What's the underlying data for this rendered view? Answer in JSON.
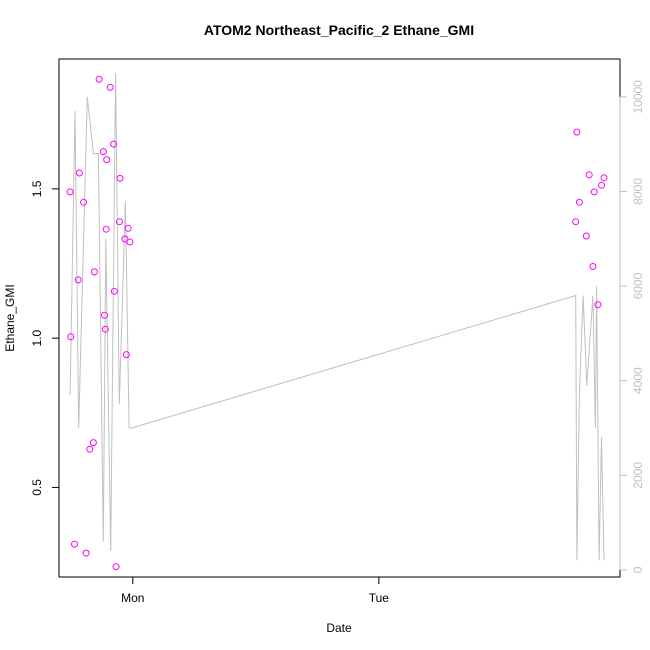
{
  "chart_data": {
    "type": "scatter",
    "title": "ATOM2 Northeast_Pacific_2 Ethane_GMI",
    "xlabel": "Date",
    "ylabel": "Ethane_GMI",
    "x_ticks": [
      {
        "label": "Mon",
        "value": 0
      },
      {
        "label": "Tue",
        "value": 1
      }
    ],
    "xlim": [
      -0.3,
      1.98
    ],
    "ylim": [
      0.2,
      1.935
    ],
    "y_ticks": [
      0.5,
      1.0,
      1.5
    ],
    "y_tick_labels": [
      "0.5",
      "1.0",
      "1.5"
    ],
    "y2lim": [
      -150,
      10800
    ],
    "y2_ticks": [
      0,
      2000,
      4000,
      6000,
      8000,
      10000
    ],
    "y2_tick_labels": [
      "0",
      "2000",
      "4000",
      "6000",
      "8000",
      "10000"
    ],
    "colors": {
      "points": "#ff00ff",
      "line": "#c0c0c0",
      "axis": "#000000",
      "right_axis": "#c0c0c0"
    },
    "grid": false,
    "series": [
      {
        "type": "scatter",
        "axis": "left",
        "points": [
          [
            -0.255,
            1.49
          ],
          [
            -0.252,
            1.005
          ],
          [
            -0.237,
            0.31
          ],
          [
            -0.222,
            1.195
          ],
          [
            -0.217,
            1.553
          ],
          [
            -0.2,
            1.455
          ],
          [
            -0.19,
            0.28
          ],
          [
            -0.175,
            0.628
          ],
          [
            -0.16,
            0.65
          ],
          [
            -0.156,
            1.222
          ],
          [
            -0.137,
            1.867
          ],
          [
            -0.12,
            1.625
          ],
          [
            -0.115,
            1.077
          ],
          [
            -0.112,
            1.03
          ],
          [
            -0.108,
            1.365
          ],
          [
            -0.106,
            1.598
          ],
          [
            -0.092,
            1.84
          ],
          [
            -0.078,
            1.65
          ],
          [
            -0.075,
            1.157
          ],
          [
            -0.068,
            0.235
          ],
          [
            -0.054,
            1.39
          ],
          [
            -0.052,
            1.535
          ],
          [
            -0.032,
            1.332
          ],
          [
            -0.026,
            0.945
          ],
          [
            -0.019,
            1.368
          ],
          [
            -0.012,
            1.322
          ],
          [
            1.8,
            1.39
          ],
          [
            1.805,
            1.69
          ],
          [
            1.815,
            1.455
          ],
          [
            1.843,
            1.342
          ],
          [
            1.855,
            1.547
          ],
          [
            1.87,
            1.24
          ],
          [
            1.875,
            1.49
          ],
          [
            1.89,
            1.112
          ],
          [
            1.905,
            1.512
          ],
          [
            1.915,
            1.537
          ]
        ]
      },
      {
        "type": "line",
        "axis": "right",
        "points": [
          [
            -0.255,
            3700
          ],
          [
            -0.235,
            9700
          ],
          [
            -0.22,
            3000
          ],
          [
            -0.185,
            10000
          ],
          [
            -0.16,
            8800
          ],
          [
            -0.14,
            8800
          ],
          [
            -0.12,
            600
          ],
          [
            -0.11,
            7000
          ],
          [
            -0.09,
            400
          ],
          [
            -0.07,
            10500
          ],
          [
            -0.055,
            3500
          ],
          [
            -0.03,
            7800
          ],
          [
            -0.015,
            3000
          ],
          [
            -0.005,
            3000
          ],
          [
            1.8,
            5800
          ],
          [
            1.805,
            200
          ],
          [
            1.815,
            3700
          ],
          [
            1.83,
            5800
          ],
          [
            1.845,
            3900
          ],
          [
            1.87,
            5800
          ],
          [
            1.88,
            3000
          ],
          [
            1.885,
            6000
          ],
          [
            1.895,
            200
          ],
          [
            1.905,
            2800
          ],
          [
            1.915,
            200
          ]
        ]
      }
    ]
  }
}
